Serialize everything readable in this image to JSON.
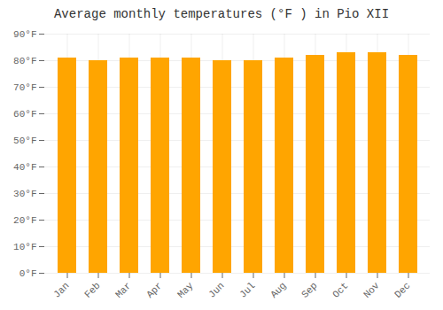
{
  "chart_data": {
    "type": "bar",
    "title": "Average monthly temperatures (°F ) in Pio XII",
    "categories": [
      "Jan",
      "Feb",
      "Mar",
      "Apr",
      "May",
      "Jun",
      "Jul",
      "Aug",
      "Sep",
      "Oct",
      "Nov",
      "Dec"
    ],
    "values": [
      81,
      80,
      81,
      81,
      81,
      80,
      80,
      81,
      82,
      83,
      83,
      82
    ],
    "color": "#FFA500",
    "ylim": [
      0,
      90
    ],
    "yticks": [
      {
        "value": 0,
        "label": "0°F"
      },
      {
        "value": 10,
        "label": "10°F"
      },
      {
        "value": 20,
        "label": "20°F"
      },
      {
        "value": 30,
        "label": "30°F"
      },
      {
        "value": 40,
        "label": "40°F"
      },
      {
        "value": 50,
        "label": "50°F"
      },
      {
        "value": 60,
        "label": "60°F"
      },
      {
        "value": 70,
        "label": "70°F"
      },
      {
        "value": 80,
        "label": "80°F"
      },
      {
        "value": 90,
        "label": "90°F"
      }
    ],
    "grid": true
  }
}
